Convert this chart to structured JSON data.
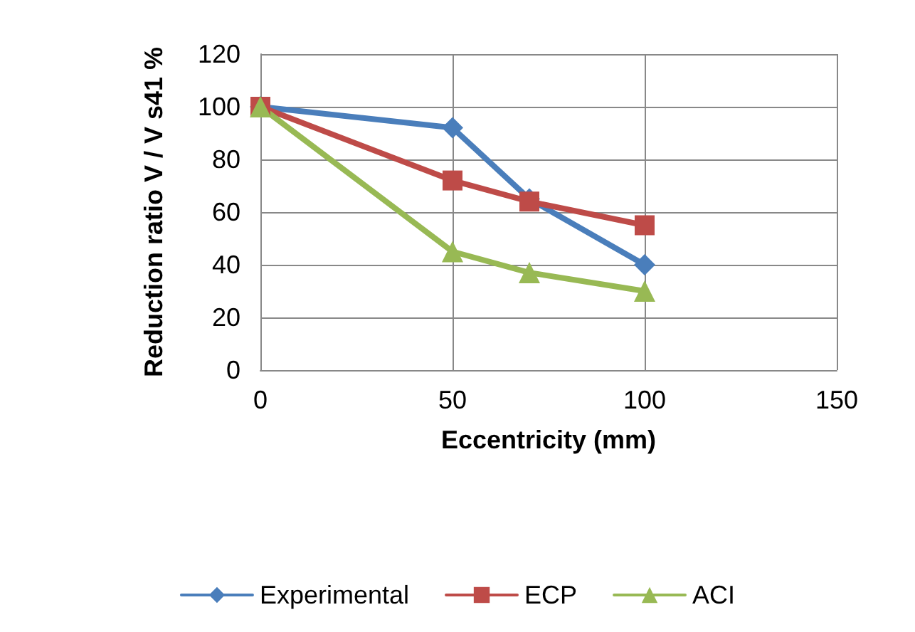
{
  "chart_data": {
    "type": "line",
    "xlabel": "Eccentricity (mm)",
    "ylabel": "Reduction ratio V / V s41 %",
    "x": [
      0,
      50,
      70,
      100
    ],
    "xlim": [
      0,
      150
    ],
    "xticks": [
      0,
      50,
      100,
      150
    ],
    "ylim": [
      0,
      120
    ],
    "yticks": [
      0,
      20,
      40,
      60,
      80,
      100,
      120
    ],
    "grid": true,
    "legend": "bottom",
    "series": [
      {
        "name": "Experimental",
        "color": "#4a7ebb",
        "marker": "diamond",
        "values": [
          100,
          92,
          65,
          40
        ]
      },
      {
        "name": "ECP",
        "color": "#be4b48",
        "marker": "square",
        "values": [
          100,
          72,
          64,
          55
        ]
      },
      {
        "name": "ACI",
        "color": "#98b954",
        "marker": "triangle",
        "values": [
          100,
          45,
          37,
          30
        ]
      }
    ]
  }
}
